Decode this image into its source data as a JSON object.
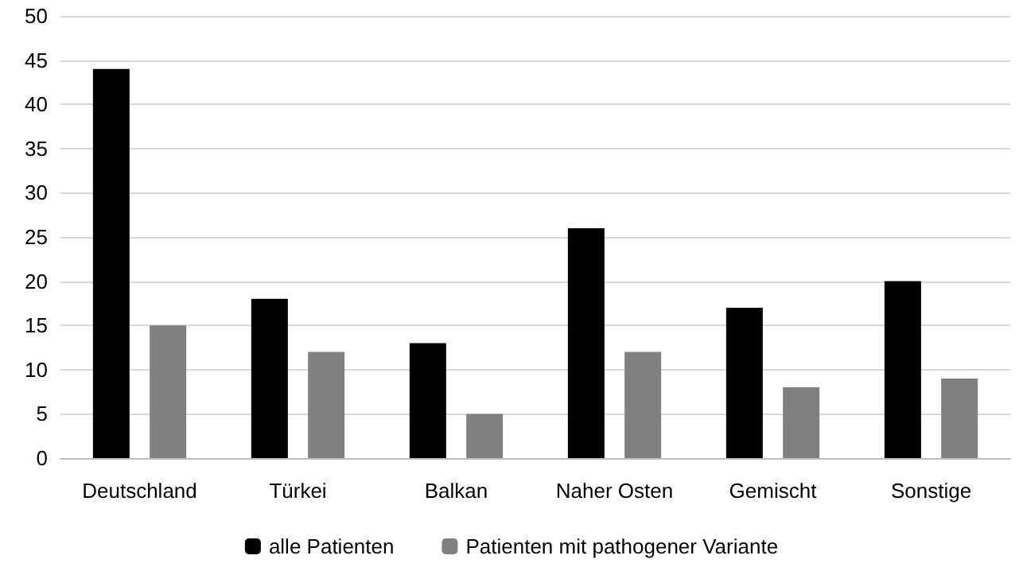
{
  "chart_data": {
    "type": "bar",
    "categories": [
      "Deutschland",
      "Türkei",
      "Balkan",
      "Naher Osten",
      "Gemischt",
      "Sonstige"
    ],
    "series": [
      {
        "name": "alle Patienten",
        "color": "#000000",
        "values": [
          44,
          18,
          13,
          26,
          17,
          20
        ]
      },
      {
        "name": "Patienten mit pathogener Variante",
        "color": "#808080",
        "values": [
          15,
          12,
          5,
          12,
          8,
          9
        ]
      }
    ],
    "ylim": [
      0,
      50
    ],
    "yticks": [
      0,
      5,
      10,
      15,
      20,
      25,
      30,
      35,
      40,
      45,
      50
    ],
    "grid": "y",
    "legend": "bottom"
  }
}
